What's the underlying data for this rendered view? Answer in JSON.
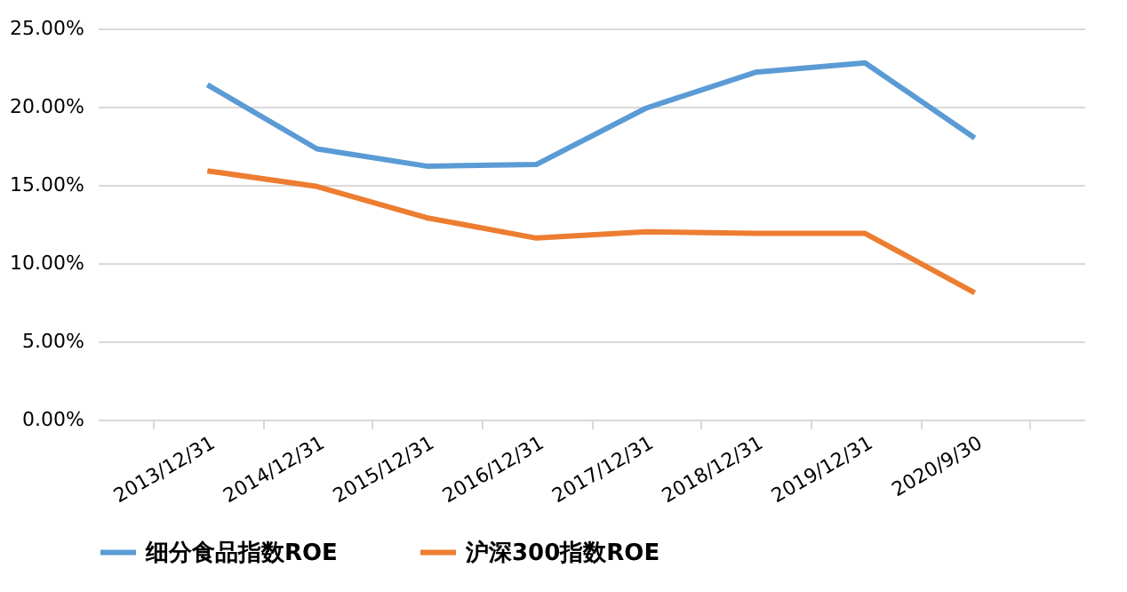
{
  "chart_data": {
    "type": "line",
    "categories": [
      "2013/12/31",
      "2014/12/31",
      "2015/12/31",
      "2016/12/31",
      "2017/12/31",
      "2018/12/31",
      "2019/12/31",
      "2020/9/30"
    ],
    "series": [
      {
        "name": "细分食品指数ROE",
        "color": "#5b9bd5",
        "values": [
          21.4,
          17.3,
          16.2,
          16.3,
          19.9,
          22.2,
          22.8,
          18.0
        ]
      },
      {
        "name": "沪深300指数ROE",
        "color": "#ed7d31",
        "values": [
          15.9,
          14.9,
          12.9,
          11.6,
          12.0,
          11.9,
          11.9,
          8.1
        ]
      }
    ],
    "ylim": [
      0,
      25
    ],
    "yticks": [
      {
        "value": 0,
        "label": "0.00%"
      },
      {
        "value": 5,
        "label": "5.00%"
      },
      {
        "value": 10,
        "label": "10.00%"
      },
      {
        "value": 15,
        "label": "15.00%"
      },
      {
        "value": 20,
        "label": "20.00%"
      },
      {
        "value": 25,
        "label": "25.00%"
      }
    ],
    "grid": "y",
    "legend": "bottom",
    "marker": "none",
    "line_style": "solid"
  }
}
